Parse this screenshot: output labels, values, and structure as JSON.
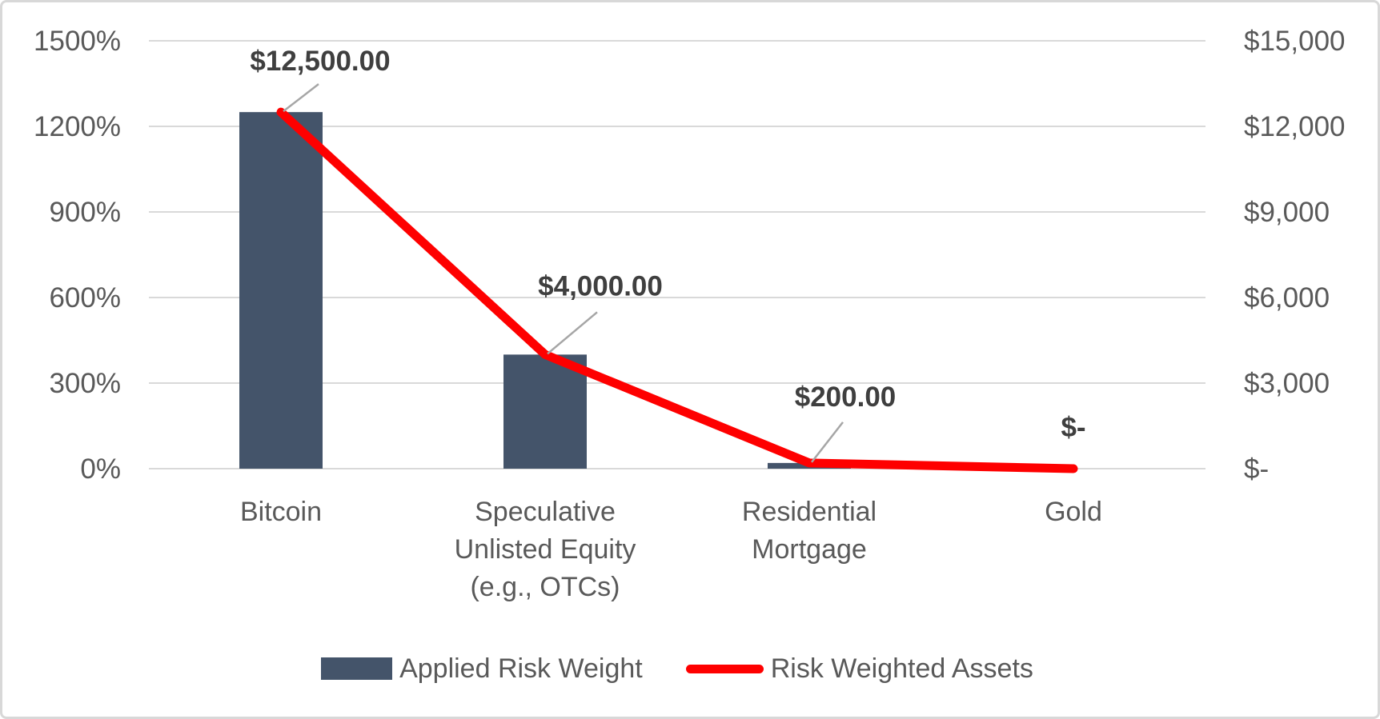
{
  "chart_data": {
    "type": "combo-bar-line",
    "categories": [
      {
        "label": "Bitcoin",
        "lines": [
          "Bitcoin"
        ]
      },
      {
        "label": "Speculative Unlisted Equity (e.g., OTCs)",
        "lines": [
          "Speculative",
          "Unlisted Equity",
          "(e.g., OTCs)"
        ]
      },
      {
        "label": "Residential Mortgage",
        "lines": [
          "Residential",
          "Mortgage"
        ]
      },
      {
        "label": "Gold",
        "lines": [
          "Gold"
        ]
      }
    ],
    "series": [
      {
        "name": "Applied Risk Weight",
        "type": "bar",
        "axis": "left",
        "values": [
          1250,
          400,
          20,
          0
        ],
        "unit": "percent"
      },
      {
        "name": "Risk Weighted Assets",
        "type": "line",
        "axis": "right",
        "values": [
          12500,
          4000,
          200,
          0
        ],
        "point_labels": [
          "$12,500.00",
          "$4,000.00",
          "$200.00",
          "$-"
        ]
      }
    ],
    "left_axis": {
      "min": 0,
      "max": 1500,
      "ticks": [
        "0%",
        "300%",
        "600%",
        "900%",
        "1200%",
        "1500%"
      ]
    },
    "right_axis": {
      "min": 0,
      "max": 15000,
      "ticks": [
        "$-",
        "$3,000",
        "$6,000",
        "$9,000",
        "$12,000",
        "$15,000"
      ]
    },
    "legend": {
      "position": "bottom",
      "entries": [
        "Applied Risk Weight",
        "Risk Weighted Assets"
      ]
    },
    "grid": "horizontal",
    "colors": {
      "bar": "#44546A",
      "line": "#FE0000",
      "gridline": "#D9D9D9",
      "axis_text": "#595959",
      "data_label": "#3F3F3F",
      "leader_line": "#A6A6A6",
      "background": "#FFFFFF",
      "frame_border": "#D8D8D8"
    }
  }
}
